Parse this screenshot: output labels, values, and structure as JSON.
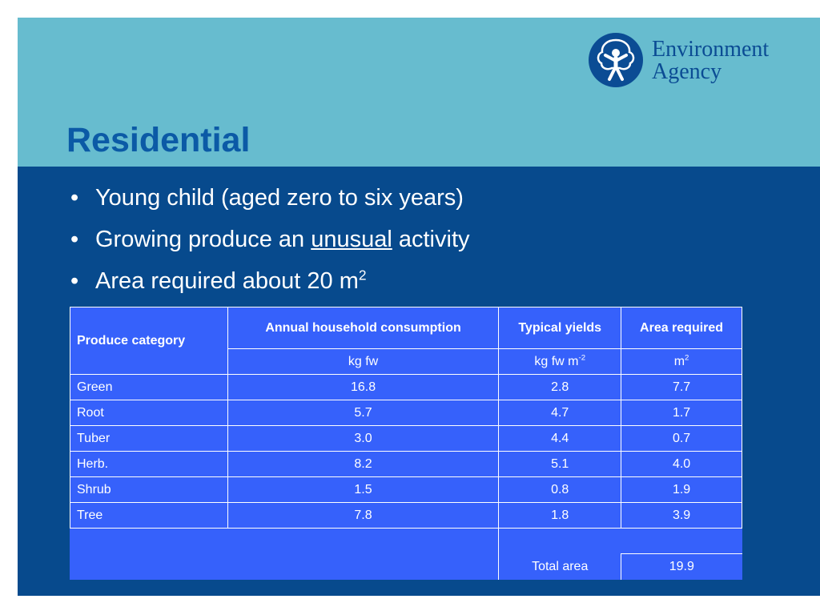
{
  "header": {
    "title": "Residential"
  },
  "logo": {
    "line1": "Environment",
    "line2": "Agency",
    "icon": "tree-figure-icon"
  },
  "bullets": [
    {
      "text": "Young child (aged zero to six years)"
    },
    {
      "pre": "Growing produce an ",
      "underlined": "unusual",
      "post": " activity"
    },
    {
      "text": "Area required about 20 m",
      "sup": "2"
    }
  ],
  "bullet_glyph": "•",
  "table": {
    "headers": {
      "category": "Produce category",
      "consumption": "Annual household consumption",
      "yields": "Typical yields",
      "area": "Area required"
    },
    "units": {
      "consumption": "kg fw",
      "yields": "kg fw m",
      "yields_sup": "-2",
      "area": "m",
      "area_sup": "2"
    },
    "rows": [
      {
        "category": "Green",
        "consumption": "16.8",
        "yields": "2.8",
        "area": "7.7"
      },
      {
        "category": "Root",
        "consumption": "5.7",
        "yields": "4.7",
        "area": "1.7"
      },
      {
        "category": "Tuber",
        "consumption": "3.0",
        "yields": "4.4",
        "area": "0.7"
      },
      {
        "category": "Herb.",
        "consumption": "8.2",
        "yields": "5.1",
        "area": "4.0"
      },
      {
        "category": "Shrub",
        "consumption": "1.5",
        "yields": "0.8",
        "area": "1.9"
      },
      {
        "category": "Tree",
        "consumption": "7.8",
        "yields": "1.8",
        "area": "3.9"
      }
    ],
    "total": {
      "label": "Total area",
      "value": "19.9"
    }
  },
  "colors": {
    "header_band": "#67bccf",
    "body": "#074a8d",
    "title": "#0b5aa6",
    "table_fill": "#3661fb",
    "logo": "#0b4c94"
  }
}
